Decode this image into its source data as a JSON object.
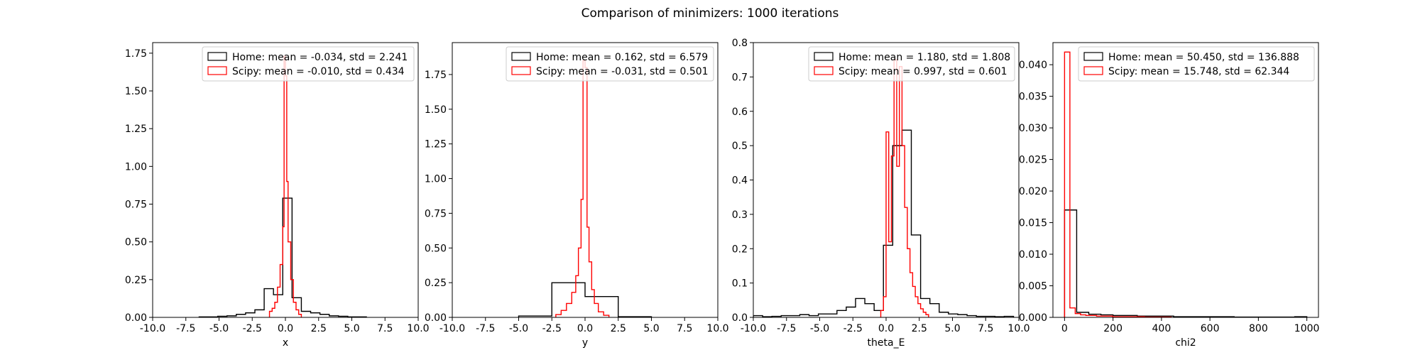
{
  "figure": {
    "title": "Comparison of minimizers: 1000 iterations"
  },
  "colors": {
    "home": "#000000",
    "scipy": "#ff0000"
  },
  "chart_data": [
    {
      "type": "histogram",
      "xlabel": "x",
      "xlim": [
        -10,
        10
      ],
      "ylim": [
        0,
        1.82
      ],
      "xticks": [
        "-10.0",
        "-7.5",
        "-5.0",
        "-2.5",
        "0.0",
        "2.5",
        "5.0",
        "7.5",
        "10.0"
      ],
      "xtick_values": [
        -10,
        -7.5,
        -5,
        -2.5,
        0,
        2.5,
        5,
        7.5,
        10
      ],
      "yticks": [
        "0.00",
        "0.25",
        "0.50",
        "0.75",
        "1.00",
        "1.25",
        "1.50",
        "1.75"
      ],
      "ytick_values": [
        0,
        0.25,
        0.5,
        0.75,
        1.0,
        1.25,
        1.5,
        1.75
      ],
      "legend_position": "top-right",
      "series": [
        {
          "legend": "Home: mean = -0.034, std = 2.241",
          "color": "#000000",
          "edges": [
            -6.5,
            -5.8,
            -5.1,
            -4.4,
            -3.7,
            -3.0,
            -2.3,
            -1.6,
            -0.9,
            -0.2,
            0.5,
            1.2,
            1.9,
            2.6,
            3.3,
            4.0,
            4.7,
            5.4,
            6.1
          ],
          "values": [
            0.003,
            0.003,
            0.007,
            0.01,
            0.02,
            0.03,
            0.05,
            0.19,
            0.15,
            0.79,
            0.13,
            0.04,
            0.03,
            0.02,
            0.01,
            0.007,
            0.003,
            0.003
          ]
        },
        {
          "legend": "Scipy: mean = -0.010, std = 0.434",
          "color": "#ff0000",
          "edges": [
            -1.2,
            -1.0,
            -0.8,
            -0.6,
            -0.4,
            -0.2,
            -0.1,
            0.0,
            0.1,
            0.2,
            0.4,
            0.6,
            0.8,
            1.0,
            1.2
          ],
          "values": [
            0.04,
            0.06,
            0.1,
            0.2,
            0.35,
            0.6,
            1.73,
            1.6,
            0.9,
            0.5,
            0.25,
            0.1,
            0.05,
            0.02
          ]
        }
      ]
    },
    {
      "type": "histogram",
      "xlabel": "y",
      "xlim": [
        -10,
        10
      ],
      "ylim": [
        0,
        1.98
      ],
      "xticks": [
        "-10.0",
        "-7.5",
        "-5.0",
        "-2.5",
        "0.0",
        "2.5",
        "5.0",
        "7.5",
        "10.0"
      ],
      "xtick_values": [
        -10,
        -7.5,
        -5,
        -2.5,
        0,
        2.5,
        5,
        7.5,
        10
      ],
      "yticks": [
        "0.00",
        "0.25",
        "0.50",
        "0.75",
        "1.00",
        "1.25",
        "1.50",
        "1.75"
      ],
      "ytick_values": [
        0,
        0.25,
        0.5,
        0.75,
        1.0,
        1.25,
        1.5,
        1.75
      ],
      "legend_position": "top-right",
      "series": [
        {
          "legend": "Home: mean = 0.162, std = 6.579",
          "color": "#000000",
          "edges": [
            -5.0,
            -2.5,
            0.0,
            2.5,
            5.0
          ],
          "values": [
            0.01,
            0.25,
            0.15,
            0.005
          ]
        },
        {
          "legend": "Scipy: mean = -0.031, std = 0.501",
          "color": "#ff0000",
          "edges": [
            -2.2,
            -1.8,
            -1.4,
            -1.0,
            -0.7,
            -0.5,
            -0.3,
            -0.15,
            0.0,
            0.15,
            0.3,
            0.5,
            0.7,
            1.0,
            1.4,
            1.8
          ],
          "values": [
            0.02,
            0.05,
            0.1,
            0.18,
            0.3,
            0.5,
            0.85,
            1.85,
            1.8,
            0.65,
            0.4,
            0.2,
            0.1,
            0.04,
            0.015
          ]
        }
      ]
    },
    {
      "type": "histogram",
      "xlabel": "theta_E",
      "xlim": [
        -10,
        10
      ],
      "ylim": [
        0,
        0.8
      ],
      "xticks": [
        "-10.0",
        "-7.5",
        "-5.0",
        "-2.5",
        "0.0",
        "2.5",
        "5.0",
        "7.5",
        "10.0"
      ],
      "xtick_values": [
        -10,
        -7.5,
        -5,
        -2.5,
        0,
        2.5,
        5,
        7.5,
        10
      ],
      "yticks": [
        "0.0",
        "0.1",
        "0.2",
        "0.3",
        "0.4",
        "0.5",
        "0.6",
        "0.7",
        "0.8"
      ],
      "ytick_values": [
        0,
        0.1,
        0.2,
        0.3,
        0.4,
        0.5,
        0.6,
        0.7,
        0.8
      ],
      "legend_position": "top-right",
      "series": [
        {
          "legend": "Home: mean = 1.180, std = 1.808",
          "color": "#000000",
          "edges": [
            -10.0,
            -9.3,
            -8.6,
            -7.9,
            -7.2,
            -6.5,
            -5.8,
            -5.1,
            -4.4,
            -3.7,
            -3.0,
            -2.3,
            -1.6,
            -0.9,
            -0.2,
            0.5,
            1.2,
            1.9,
            2.6,
            3.3,
            4.0,
            4.7,
            5.4,
            6.1,
            6.8,
            7.5,
            8.2,
            8.9,
            9.6
          ],
          "values": [
            0.005,
            0.002,
            0.003,
            0.005,
            0.005,
            0.008,
            0.005,
            0.01,
            0.01,
            0.02,
            0.03,
            0.055,
            0.04,
            0.02,
            0.21,
            0.5,
            0.545,
            0.24,
            0.055,
            0.04,
            0.015,
            0.01,
            0.008,
            0.005,
            0.003,
            0.003,
            0.002,
            0.003
          ]
        },
        {
          "legend": "Scipy: mean = 0.997, std = 0.601",
          "color": "#ff0000",
          "edges": [
            -0.4,
            -0.2,
            0.0,
            0.2,
            0.4,
            0.6,
            0.8,
            1.0,
            1.2,
            1.4,
            1.6,
            1.8,
            2.0,
            2.2,
            2.4,
            2.6,
            2.8,
            3.0,
            3.2
          ],
          "values": [
            0.02,
            0.06,
            0.54,
            0.22,
            0.47,
            0.75,
            0.44,
            0.73,
            0.5,
            0.32,
            0.2,
            0.13,
            0.09,
            0.06,
            0.04,
            0.025,
            0.015,
            0.008
          ]
        }
      ]
    },
    {
      "type": "histogram",
      "xlabel": "chi2",
      "xlim": [
        -48,
        1048
      ],
      "ylim": [
        0,
        0.0435
      ],
      "xticks": [
        "0",
        "200",
        "400",
        "600",
        "800",
        "1000"
      ],
      "xtick_values": [
        0,
        200,
        400,
        600,
        800,
        1000
      ],
      "yticks": [
        "0.000",
        "0.005",
        "0.010",
        "0.015",
        "0.020",
        "0.025",
        "0.030",
        "0.035",
        "0.040"
      ],
      "ytick_values": [
        0,
        0.005,
        0.01,
        0.015,
        0.02,
        0.025,
        0.03,
        0.035,
        0.04
      ],
      "legend_position": "top-right",
      "series": [
        {
          "legend": "Home: mean = 50.450, std = 136.888",
          "color": "#000000",
          "edges": [
            0,
            50,
            100,
            150,
            200,
            250,
            300,
            350,
            400,
            450,
            500,
            550,
            600,
            650,
            700,
            750,
            800,
            850,
            900,
            950,
            1000
          ],
          "values": [
            0.017,
            0.0008,
            0.0005,
            0.0004,
            0.0003,
            0.0003,
            0.0002,
            0.0002,
            0.0002,
            0.0001,
            0.0001,
            0.0001,
            0.0001,
            0.0001,
            5e-05,
            5e-05,
            5e-05,
            5e-05,
            5e-05,
            0.0001
          ]
        },
        {
          "legend": "Scipy: mean = 15.748, std = 62.344",
          "color": "#ff0000",
          "edges": [
            0,
            22,
            44,
            66,
            88,
            110,
            132,
            154,
            176,
            198,
            220,
            242,
            264,
            286,
            308,
            330,
            352,
            374,
            396,
            418,
            440
          ],
          "values": [
            0.042,
            0.0015,
            0.0006,
            0.0004,
            0.0003,
            0.0003,
            0.0002,
            0.0002,
            0.0002,
            0.0001,
            0.0001,
            0.0001,
            0.0001,
            0.0001,
            0.0001,
            5e-05,
            5e-05,
            5e-05,
            5e-05,
            5e-05
          ]
        }
      ]
    }
  ]
}
